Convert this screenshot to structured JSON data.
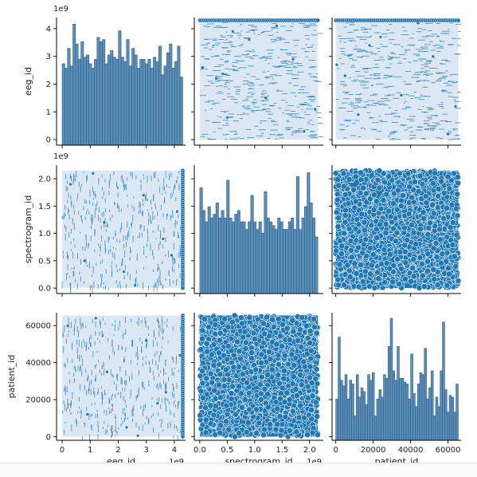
{
  "chart_data": {
    "type": "scatter",
    "kind": "pairplot",
    "variables": [
      "eeg_id",
      "spectrogram_id",
      "patient_id"
    ],
    "axis_labels": [
      "eeg_id",
      "spectrogram_id",
      "patient_id"
    ],
    "axis_ranges": {
      "eeg_id": [
        -200000000.0,
        4400000000.0
      ],
      "spectrogram_id": [
        -100000000.0,
        2250000000.0
      ],
      "patient_id": [
        -2000,
        67000
      ]
    },
    "ticks": {
      "eeg_id": {
        "values": [
          0,
          1000000000.0,
          2000000000.0,
          3000000000.0,
          4000000000.0
        ],
        "labels": [
          "0",
          "1",
          "2",
          "3",
          "4"
        ],
        "offset_label": "1e9"
      },
      "spectrogram_id": {
        "values": [
          0,
          500000000.0,
          1000000000.0,
          1500000000.0,
          2000000000.0
        ],
        "labels": [
          "0.0",
          "0.5",
          "1.0",
          "1.5",
          "2.0"
        ],
        "offset_label": "1e9"
      },
      "patient_id": {
        "values": [
          0,
          20000,
          40000,
          60000
        ],
        "labels": [
          "0",
          "20000",
          "40000",
          "60000"
        ],
        "offset_label": ""
      }
    },
    "histograms": {
      "eeg_id": {
        "bin_range": [
          0,
          4300000000.0
        ],
        "counts": [
          1.85,
          1.75,
          2.2,
          1.8,
          2.75,
          2.3,
          1.95,
          2.35,
          2.0,
          2.05,
          1.85,
          1.75,
          1.95,
          2.45,
          2.35,
          2.4,
          1.85,
          2.05,
          2.15,
          2.0,
          1.95,
          2.6,
          2.0,
          1.9,
          2.4,
          1.8,
          2.2,
          2.05,
          1.75,
          1.95,
          1.95,
          1.85,
          1.95,
          1.75,
          2.0,
          1.9,
          2.25,
          1.6,
          1.8,
          2.1,
          2.3,
          1.75,
          1.9,
          2.25,
          1.55
        ]
      },
      "spectrogram_id": {
        "bin_range": [
          0,
          2150000000.0
        ],
        "counts": [
          1.4,
          1.1,
          0.95,
          1.15,
          1.0,
          1.05,
          1.2,
          1.0,
          1.1,
          1.0,
          1.5,
          1.0,
          0.95,
          1.05,
          1.1,
          0.95,
          0.95,
          0.85,
          0.95,
          1.3,
          0.95,
          0.85,
          0.95,
          0.8,
          1.35,
          1.0,
          0.95,
          0.9,
          0.85,
          1.0,
          0.95,
          0.85,
          0.85,
          0.95,
          1.0,
          0.85,
          1.55,
          0.85,
          1.0,
          1.15,
          1.6,
          1.2,
          1.0,
          0.75
        ]
      },
      "patient_id": {
        "bin_range": [
          0,
          65500
        ],
        "counts": [
          22,
          55,
          32,
          29,
          35,
          22,
          32,
          30,
          13,
          35,
          23,
          28,
          26,
          19,
          35,
          32,
          36,
          13,
          22,
          27,
          23,
          35,
          33,
          50,
          65,
          37,
          32,
          50,
          33,
          33,
          31,
          30,
          22,
          46,
          25,
          18,
          30,
          36,
          35,
          49,
          22,
          28,
          37,
          13,
          23,
          18,
          37,
          63,
          27,
          15,
          24,
          23,
          15,
          30
        ]
      }
    },
    "hist_ymax": {
      "eeg_id": 2.9,
      "spectrogram_id": 1.7,
      "patient_id": 68
    },
    "series": [
      {
        "name": "",
        "x": "eeg_id",
        "y": "spectrogram_id",
        "description": "dense uniform scatter",
        "points": [
          [
            300000000.0,
            1900000000.0
          ],
          [
            800000000.0,
            500000000.0
          ],
          [
            1500000000.0,
            1200000000.0
          ],
          [
            2200000000.0,
            300000000.0
          ],
          [
            2900000000.0,
            1700000000.0
          ],
          [
            3600000000.0,
            900000000.0
          ],
          [
            4100000000.0,
            1400000000.0
          ],
          [
            1100000000.0,
            2100000000.0
          ],
          [
            2600000000.0,
            50000000.0
          ],
          [
            3900000000.0,
            600000000.0
          ]
        ]
      },
      {
        "name": "",
        "x": "eeg_id",
        "y": "patient_id",
        "description": "dense uniform scatter",
        "points": [
          [
            200000000.0,
            60000
          ],
          [
            900000000.0,
            12000
          ],
          [
            1600000000.0,
            35000
          ],
          [
            2300000000.0,
            5000
          ],
          [
            3000000000.0,
            52000
          ],
          [
            3700000000.0,
            24000
          ],
          [
            4200000000.0,
            44000
          ],
          [
            1200000000.0,
            64000
          ],
          [
            2700000000.0,
            500
          ],
          [
            3400000000.0,
            18000
          ]
        ]
      },
      {
        "name": "",
        "x": "spectrogram_id",
        "y": "patient_id",
        "description": "dense uniform scatter",
        "points": [
          [
            100000000.0,
            30000
          ],
          [
            500000000.0,
            60000
          ],
          [
            900000000.0,
            8000
          ],
          [
            1300000000.0,
            45000
          ],
          [
            1700000000.0,
            20000
          ],
          [
            2050000000.0,
            55000
          ],
          [
            300000000.0,
            2000
          ],
          [
            1100000000.0,
            65000
          ],
          [
            1900000000.0,
            36000
          ],
          [
            700000000.0,
            27000
          ]
        ]
      }
    ]
  }
}
